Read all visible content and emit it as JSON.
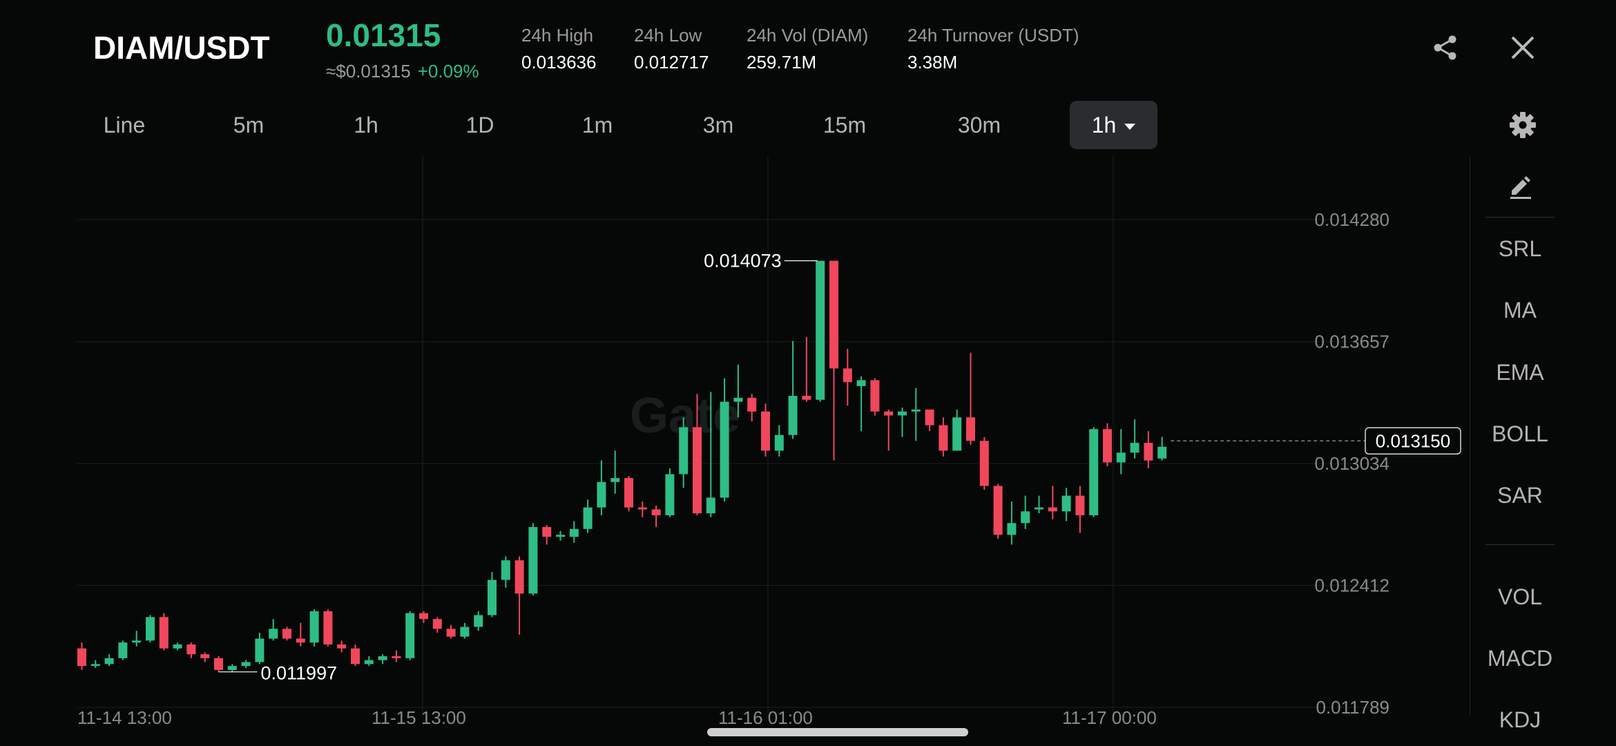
{
  "header": {
    "pair": "DIAM/USDT",
    "price": "0.01315",
    "usd_price": "≈$0.01315",
    "change": "+0.09%",
    "stats": [
      {
        "label": "24h High",
        "value": "0.013636"
      },
      {
        "label": "24h Low",
        "value": "0.012717"
      },
      {
        "label": "24h Vol (DIAM)",
        "value": "259.71M"
      },
      {
        "label": "24h Turnover (USDT)",
        "value": "3.38M"
      }
    ],
    "share_icon": "share-icon",
    "close_icon": "close-icon"
  },
  "tabs": [
    {
      "label": "Line"
    },
    {
      "label": "5m"
    },
    {
      "label": "1h"
    },
    {
      "label": "1D"
    },
    {
      "label": "1m"
    },
    {
      "label": "3m"
    },
    {
      "label": "15m"
    },
    {
      "label": "30m"
    },
    {
      "label": "1h",
      "active": true
    }
  ],
  "settings_icon": "gear-icon",
  "sidebar": {
    "edit_icon": "pencil-icon",
    "items": [
      "SRL",
      "MA",
      "EMA",
      "BOLL",
      "SAR"
    ],
    "indicators": [
      "VOL",
      "MACD",
      "KDJ"
    ]
  },
  "watermark": "Gate",
  "colors": {
    "up": "#2ebd85",
    "down": "#f0475c",
    "background": "#060808"
  },
  "chart_data": {
    "type": "candlestick",
    "interval": "1h",
    "y_ticks": [
      "0.014280",
      "0.013657",
      "0.013034",
      "0.012412",
      "0.011789"
    ],
    "ylim": [
      0.011789,
      0.01428
    ],
    "x_ticks": [
      "11-14 13:00",
      "11-15 13:00",
      "11-16 01:00",
      "11-17 00:00"
    ],
    "current_price": "0.013150",
    "high_label": "0.014073",
    "low_label": "0.011997",
    "candles": [
      {
        "o": 0.01209,
        "c": 0.012,
        "h": 0.01212,
        "l": 0.01198
      },
      {
        "o": 0.012,
        "c": 0.01201,
        "h": 0.01203,
        "l": 0.01199
      },
      {
        "o": 0.01201,
        "c": 0.01204,
        "h": 0.01206,
        "l": 0.012
      },
      {
        "o": 0.01204,
        "c": 0.01212,
        "h": 0.01213,
        "l": 0.01203
      },
      {
        "o": 0.01212,
        "c": 0.01213,
        "h": 0.01218,
        "l": 0.0121
      },
      {
        "o": 0.01213,
        "c": 0.01225,
        "h": 0.01226,
        "l": 0.01212
      },
      {
        "o": 0.01225,
        "c": 0.01209,
        "h": 0.01227,
        "l": 0.01208
      },
      {
        "o": 0.01209,
        "c": 0.01211,
        "h": 0.01212,
        "l": 0.01208
      },
      {
        "o": 0.01211,
        "c": 0.01206,
        "h": 0.01212,
        "l": 0.01204
      },
      {
        "o": 0.01206,
        "c": 0.01204,
        "h": 0.01207,
        "l": 0.01202
      },
      {
        "o": 0.01204,
        "c": 0.01198,
        "h": 0.01205,
        "l": 0.01197
      },
      {
        "o": 0.01198,
        "c": 0.012,
        "h": 0.01201,
        "l": 0.01197
      },
      {
        "o": 0.012,
        "c": 0.01202,
        "h": 0.01203,
        "l": 0.01199
      },
      {
        "o": 0.01202,
        "c": 0.01214,
        "h": 0.01217,
        "l": 0.01201
      },
      {
        "o": 0.01214,
        "c": 0.01219,
        "h": 0.01224,
        "l": 0.01213
      },
      {
        "o": 0.01219,
        "c": 0.01214,
        "h": 0.0122,
        "l": 0.01213
      },
      {
        "o": 0.01214,
        "c": 0.01212,
        "h": 0.01222,
        "l": 0.0121
      },
      {
        "o": 0.01212,
        "c": 0.01228,
        "h": 0.01229,
        "l": 0.0121
      },
      {
        "o": 0.01228,
        "c": 0.01211,
        "h": 0.01229,
        "l": 0.0121
      },
      {
        "o": 0.01211,
        "c": 0.01209,
        "h": 0.01213,
        "l": 0.01207
      },
      {
        "o": 0.01209,
        "c": 0.01201,
        "h": 0.01211,
        "l": 0.012
      },
      {
        "o": 0.01201,
        "c": 0.01203,
        "h": 0.01205,
        "l": 0.012
      },
      {
        "o": 0.01203,
        "c": 0.01205,
        "h": 0.01206,
        "l": 0.01201
      },
      {
        "o": 0.01205,
        "c": 0.01204,
        "h": 0.01208,
        "l": 0.01202
      },
      {
        "o": 0.01204,
        "c": 0.01227,
        "h": 0.01228,
        "l": 0.01203
      },
      {
        "o": 0.01227,
        "c": 0.01224,
        "h": 0.01228,
        "l": 0.01222
      },
      {
        "o": 0.01224,
        "c": 0.01219,
        "h": 0.01225,
        "l": 0.01217
      },
      {
        "o": 0.01219,
        "c": 0.01215,
        "h": 0.01221,
        "l": 0.01214
      },
      {
        "o": 0.01215,
        "c": 0.0122,
        "h": 0.01222,
        "l": 0.01214
      },
      {
        "o": 0.0122,
        "c": 0.01226,
        "h": 0.01228,
        "l": 0.01218
      },
      {
        "o": 0.01226,
        "c": 0.01244,
        "h": 0.01248,
        "l": 0.01225
      },
      {
        "o": 0.01244,
        "c": 0.01254,
        "h": 0.01256,
        "l": 0.0124
      },
      {
        "o": 0.01254,
        "c": 0.01237,
        "h": 0.01256,
        "l": 0.01216
      },
      {
        "o": 0.01237,
        "c": 0.01271,
        "h": 0.01273,
        "l": 0.01236
      },
      {
        "o": 0.01271,
        "c": 0.01266,
        "h": 0.01272,
        "l": 0.01262
      },
      {
        "o": 0.01266,
        "c": 0.01267,
        "h": 0.01269,
        "l": 0.01264
      },
      {
        "o": 0.01266,
        "c": 0.0127,
        "h": 0.01274,
        "l": 0.01263
      },
      {
        "o": 0.0127,
        "c": 0.01281,
        "h": 0.01285,
        "l": 0.01268
      },
      {
        "o": 0.01281,
        "c": 0.01294,
        "h": 0.01305,
        "l": 0.01277
      },
      {
        "o": 0.01294,
        "c": 0.01296,
        "h": 0.0131,
        "l": 0.01288
      },
      {
        "o": 0.01296,
        "c": 0.01281,
        "h": 0.01297,
        "l": 0.01279
      },
      {
        "o": 0.01281,
        "c": 0.0128,
        "h": 0.01284,
        "l": 0.01276
      },
      {
        "o": 0.0128,
        "c": 0.01277,
        "h": 0.01282,
        "l": 0.01271
      },
      {
        "o": 0.01277,
        "c": 0.01298,
        "h": 0.01301,
        "l": 0.01276
      },
      {
        "o": 0.01298,
        "c": 0.01322,
        "h": 0.01327,
        "l": 0.01291
      },
      {
        "o": 0.01322,
        "c": 0.01278,
        "h": 0.01339,
        "l": 0.01277
      },
      {
        "o": 0.01278,
        "c": 0.01286,
        "h": 0.0134,
        "l": 0.01276
      },
      {
        "o": 0.01286,
        "c": 0.01335,
        "h": 0.01347,
        "l": 0.01284
      },
      {
        "o": 0.01335,
        "c": 0.01337,
        "h": 0.01354,
        "l": 0.01327
      },
      {
        "o": 0.01337,
        "c": 0.0133,
        "h": 0.01339,
        "l": 0.01325
      },
      {
        "o": 0.0133,
        "c": 0.0131,
        "h": 0.01334,
        "l": 0.01307
      },
      {
        "o": 0.0131,
        "c": 0.01318,
        "h": 0.01323,
        "l": 0.01307
      },
      {
        "o": 0.01318,
        "c": 0.01338,
        "h": 0.01366,
        "l": 0.01316
      },
      {
        "o": 0.01338,
        "c": 0.01336,
        "h": 0.01368,
        "l": 0.01335
      },
      {
        "o": 0.01336,
        "c": 0.01407,
        "h": 0.01407,
        "l": 0.01335
      },
      {
        "o": 0.01407,
        "c": 0.01352,
        "h": 0.01407,
        "l": 0.01305
      },
      {
        "o": 0.01352,
        "c": 0.01345,
        "h": 0.01362,
        "l": 0.01333
      },
      {
        "o": 0.01343,
        "c": 0.01346,
        "h": 0.01348,
        "l": 0.0132
      },
      {
        "o": 0.01346,
        "c": 0.0133,
        "h": 0.01347,
        "l": 0.01328
      },
      {
        "o": 0.0133,
        "c": 0.01328,
        "h": 0.01331,
        "l": 0.0131
      },
      {
        "o": 0.01328,
        "c": 0.0133,
        "h": 0.01332,
        "l": 0.01317
      },
      {
        "o": 0.0133,
        "c": 0.01331,
        "h": 0.01342,
        "l": 0.01315
      },
      {
        "o": 0.01331,
        "c": 0.01323,
        "h": 0.01331,
        "l": 0.0132
      },
      {
        "o": 0.01323,
        "c": 0.0131,
        "h": 0.01327,
        "l": 0.01307
      },
      {
        "o": 0.0131,
        "c": 0.01327,
        "h": 0.01331,
        "l": 0.0131
      },
      {
        "o": 0.01327,
        "c": 0.01315,
        "h": 0.0136,
        "l": 0.01313
      },
      {
        "o": 0.01315,
        "c": 0.01292,
        "h": 0.01317,
        "l": 0.0129
      },
      {
        "o": 0.01292,
        "c": 0.01267,
        "h": 0.01293,
        "l": 0.01265
      },
      {
        "o": 0.01267,
        "c": 0.01273,
        "h": 0.01284,
        "l": 0.01262
      },
      {
        "o": 0.01273,
        "c": 0.01279,
        "h": 0.01287,
        "l": 0.0127
      },
      {
        "o": 0.0128,
        "c": 0.01281,
        "h": 0.01287,
        "l": 0.01278
      },
      {
        "o": 0.01281,
        "c": 0.01279,
        "h": 0.01292,
        "l": 0.01275
      },
      {
        "o": 0.01279,
        "c": 0.01287,
        "h": 0.01291,
        "l": 0.01274
      },
      {
        "o": 0.01287,
        "c": 0.01277,
        "h": 0.01292,
        "l": 0.01268
      },
      {
        "o": 0.01277,
        "c": 0.01321,
        "h": 0.01322,
        "l": 0.01276
      },
      {
        "o": 0.01321,
        "c": 0.01304,
        "h": 0.01324,
        "l": 0.01302
      },
      {
        "o": 0.01304,
        "c": 0.01309,
        "h": 0.01321,
        "l": 0.01298
      },
      {
        "o": 0.01309,
        "c": 0.01314,
        "h": 0.01326,
        "l": 0.01306
      },
      {
        "o": 0.01314,
        "c": 0.01305,
        "h": 0.0132,
        "l": 0.01301
      },
      {
        "o": 0.01306,
        "c": 0.01312,
        "h": 0.01317,
        "l": 0.01305
      }
    ]
  }
}
